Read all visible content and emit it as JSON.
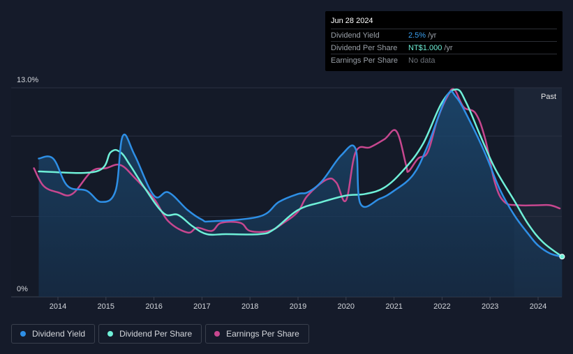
{
  "tooltip": {
    "date": "Jun 28 2024",
    "rows": [
      {
        "label": "Dividend Yield",
        "value": "2.5%",
        "unit": "/yr"
      },
      {
        "label": "Dividend Per Share",
        "value": "NT$1.000",
        "unit": "/yr"
      },
      {
        "label": "Earnings Per Share",
        "value": "No data",
        "unit": ""
      }
    ]
  },
  "legend": [
    {
      "label": "Dividend Yield",
      "color": "#2e8fe6"
    },
    {
      "label": "Dividend Per Share",
      "color": "#6ff0d8"
    },
    {
      "label": "Earnings Per Share",
      "color": "#c7478f"
    }
  ],
  "chart_data": {
    "type": "line",
    "y_max_label": "13.0%",
    "y_min_label": "0%",
    "past_label": "Past",
    "ylim": [
      0,
      13
    ],
    "xlim": [
      2013.0,
      2024.5
    ],
    "x_ticks": [
      "2014",
      "2015",
      "2016",
      "2017",
      "2018",
      "2019",
      "2020",
      "2021",
      "2022",
      "2023",
      "2024"
    ],
    "forecast_start": 2023.5,
    "series": [
      {
        "name": "Dividend Yield",
        "color": "#2e8fe6",
        "points": [
          [
            2013.6,
            8.6
          ],
          [
            2013.9,
            8.6
          ],
          [
            2014.2,
            6.9
          ],
          [
            2014.6,
            6.6
          ],
          [
            2014.9,
            5.9
          ],
          [
            2015.2,
            6.6
          ],
          [
            2015.35,
            10.0
          ],
          [
            2015.6,
            8.8
          ],
          [
            2016.0,
            6.3
          ],
          [
            2016.3,
            6.5
          ],
          [
            2016.7,
            5.4
          ],
          [
            2017.0,
            4.8
          ],
          [
            2017.2,
            4.7
          ],
          [
            2018.2,
            5.0
          ],
          [
            2018.6,
            5.9
          ],
          [
            2019.0,
            6.4
          ],
          [
            2019.2,
            6.5
          ],
          [
            2019.5,
            7.2
          ],
          [
            2019.9,
            8.8
          ],
          [
            2020.2,
            9.2
          ],
          [
            2020.3,
            5.8
          ],
          [
            2020.7,
            6.1
          ],
          [
            2021.0,
            6.6
          ],
          [
            2021.4,
            7.6
          ],
          [
            2021.7,
            9.4
          ],
          [
            2022.1,
            12.5
          ],
          [
            2022.3,
            12.4
          ],
          [
            2022.6,
            10.8
          ],
          [
            2022.9,
            8.9
          ],
          [
            2023.2,
            6.7
          ],
          [
            2023.5,
            5.1
          ],
          [
            2023.8,
            3.9
          ],
          [
            2024.0,
            3.2
          ],
          [
            2024.25,
            2.7
          ],
          [
            2024.5,
            2.5
          ]
        ]
      },
      {
        "name": "Dividend Per Share",
        "color": "#6ff0d8",
        "points": [
          [
            2013.6,
            7.8
          ],
          [
            2014.8,
            7.8
          ],
          [
            2015.1,
            9.0
          ],
          [
            2015.3,
            9.0
          ],
          [
            2015.5,
            8.2
          ],
          [
            2015.8,
            6.8
          ],
          [
            2016.2,
            5.2
          ],
          [
            2016.5,
            5.1
          ],
          [
            2016.8,
            4.4
          ],
          [
            2017.1,
            3.9
          ],
          [
            2017.5,
            3.9
          ],
          [
            2018.2,
            3.9
          ],
          [
            2018.5,
            4.2
          ],
          [
            2019.0,
            5.4
          ],
          [
            2019.5,
            5.9
          ],
          [
            2020.0,
            6.3
          ],
          [
            2020.4,
            6.4
          ],
          [
            2020.8,
            6.8
          ],
          [
            2021.2,
            7.9
          ],
          [
            2021.6,
            9.5
          ],
          [
            2022.0,
            12.1
          ],
          [
            2022.3,
            12.9
          ],
          [
            2022.5,
            12.1
          ],
          [
            2022.8,
            10.0
          ],
          [
            2023.1,
            8.0
          ],
          [
            2023.5,
            6.0
          ],
          [
            2023.8,
            4.5
          ],
          [
            2024.1,
            3.4
          ],
          [
            2024.5,
            2.5
          ]
        ]
      },
      {
        "name": "Earnings Per Share",
        "color": "#c7478f",
        "points": [
          [
            2013.5,
            8.0
          ],
          [
            2013.7,
            6.9
          ],
          [
            2014.0,
            6.5
          ],
          [
            2014.3,
            6.4
          ],
          [
            2014.7,
            7.8
          ],
          [
            2015.0,
            8.0
          ],
          [
            2015.3,
            8.2
          ],
          [
            2015.6,
            7.4
          ],
          [
            2016.0,
            6.1
          ],
          [
            2016.3,
            4.7
          ],
          [
            2016.7,
            4.0
          ],
          [
            2016.9,
            4.3
          ],
          [
            2017.2,
            4.1
          ],
          [
            2017.4,
            4.6
          ],
          [
            2017.8,
            4.6
          ],
          [
            2018.0,
            4.1
          ],
          [
            2018.4,
            4.1
          ],
          [
            2018.7,
            4.6
          ],
          [
            2019.0,
            5.3
          ],
          [
            2019.2,
            6.3
          ],
          [
            2019.6,
            7.3
          ],
          [
            2019.8,
            7.1
          ],
          [
            2020.0,
            6.0
          ],
          [
            2020.2,
            9.0
          ],
          [
            2020.5,
            9.3
          ],
          [
            2020.8,
            9.8
          ],
          [
            2021.05,
            10.3
          ],
          [
            2021.25,
            8.2
          ],
          [
            2021.3,
            7.8
          ],
          [
            2021.5,
            8.6
          ],
          [
            2021.7,
            9.0
          ],
          [
            2021.9,
            11.0
          ],
          [
            2022.1,
            12.4
          ],
          [
            2022.25,
            12.9
          ],
          [
            2022.45,
            11.8
          ],
          [
            2022.7,
            11.4
          ],
          [
            2022.9,
            9.8
          ],
          [
            2023.1,
            7.1
          ],
          [
            2023.3,
            5.9
          ],
          [
            2023.6,
            5.7
          ],
          [
            2024.0,
            5.7
          ],
          [
            2024.25,
            5.7
          ],
          [
            2024.45,
            5.5
          ]
        ]
      }
    ]
  }
}
